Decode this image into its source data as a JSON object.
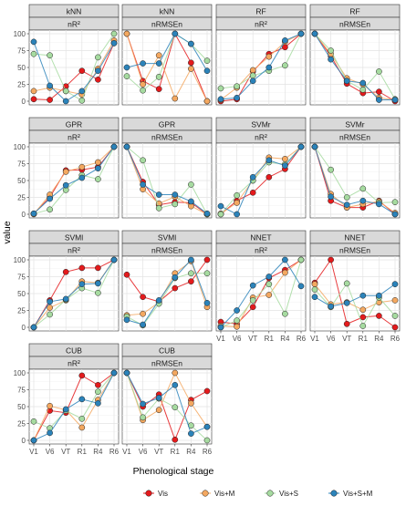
{
  "chart_data": {
    "type": "line",
    "ylabel": "value",
    "xlabel": "Phenological stage",
    "x": [
      "V1",
      "V6",
      "VT",
      "R1",
      "R4",
      "R6"
    ],
    "ylim": [
      0,
      100
    ],
    "yticks": [
      0,
      25,
      50,
      75,
      100
    ],
    "grid": true,
    "legend_position": "bottom",
    "series_names": [
      "Vis",
      "Vis+M",
      "Vis+S",
      "Vis+S+M"
    ],
    "colors": {
      "Vis": "#e41a1c",
      "Vis+M": "#f4a860",
      "Vis+S": "#a6dba0",
      "Vis+S+M": "#2b83ba"
    },
    "panels": [
      {
        "model": "kNN",
        "metric": "nR²",
        "series": {
          "Vis": [
            3,
            2,
            22,
            45,
            32,
            86
          ],
          "Vis+M": [
            15,
            20,
            15,
            10,
            48,
            90
          ],
          "Vis+S": [
            70,
            68,
            15,
            1,
            65,
            100
          ],
          "Vis+S+M": [
            88,
            23,
            0,
            15,
            45,
            86
          ]
        }
      },
      {
        "model": "kNN",
        "metric": "nRMSEn",
        "series": {
          "Vis": [
            100,
            30,
            18,
            100,
            57,
            0
          ],
          "Vis+M": [
            100,
            25,
            68,
            4,
            48,
            0
          ],
          "Vis+S": [
            37,
            16,
            36,
            100,
            85,
            60
          ],
          "Vis+S+M": [
            50,
            56,
            56,
            100,
            85,
            45
          ]
        }
      },
      {
        "model": "RF",
        "metric": "nR²",
        "series": {
          "Vis": [
            0,
            3,
            44,
            70,
            80,
            100
          ],
          "Vis+M": [
            2,
            20,
            46,
            66,
            88,
            100
          ],
          "Vis+S": [
            19,
            22,
            38,
            45,
            53,
            100
          ],
          "Vis+S+M": [
            3,
            5,
            30,
            50,
            90,
            100
          ]
        }
      },
      {
        "model": "RF",
        "metric": "nRMSEn",
        "series": {
          "Vis": [
            100,
            67,
            26,
            12,
            14,
            0
          ],
          "Vis+M": [
            100,
            70,
            34,
            25,
            5,
            2
          ],
          "Vis+S": [
            100,
            75,
            30,
            17,
            44,
            3
          ],
          "Vis+S+M": [
            100,
            62,
            30,
            27,
            2,
            2
          ]
        }
      },
      {
        "model": "GPR",
        "metric": "nR²",
        "series": {
          "Vis": [
            1,
            25,
            65,
            66,
            70,
            100
          ],
          "Vis+M": [
            0,
            29,
            63,
            70,
            77,
            100
          ],
          "Vis+S": [
            1,
            7,
            36,
            58,
            52,
            100
          ],
          "Vis+S+M": [
            1,
            23,
            43,
            54,
            68,
            100
          ]
        }
      },
      {
        "model": "GPR",
        "metric": "nRMSEn",
        "series": {
          "Vis": [
            100,
            48,
            14,
            18,
            17,
            0
          ],
          "Vis+M": [
            100,
            37,
            16,
            26,
            12,
            0
          ],
          "Vis+S": [
            100,
            80,
            9,
            15,
            44,
            0
          ],
          "Vis+S+M": [
            100,
            44,
            29,
            29,
            19,
            1
          ]
        }
      },
      {
        "model": "SVMr",
        "metric": "nR²",
        "series": {
          "Vis": [
            0,
            20,
            32,
            55,
            67,
            100
          ],
          "Vis+M": [
            1,
            17,
            50,
            84,
            82,
            100
          ],
          "Vis+S": [
            0,
            28,
            50,
            77,
            74,
            100
          ],
          "Vis+S+M": [
            12,
            0,
            55,
            80,
            72,
            100
          ]
        }
      },
      {
        "model": "SVMr",
        "metric": "nRMSEn",
        "series": {
          "Vis": [
            100,
            20,
            10,
            10,
            20,
            0
          ],
          "Vis+M": [
            100,
            30,
            10,
            15,
            19,
            2
          ],
          "Vis+S": [
            100,
            66,
            25,
            38,
            17,
            18
          ],
          "Vis+S+M": [
            100,
            26,
            14,
            20,
            15,
            0
          ]
        }
      },
      {
        "model": "SVMl",
        "metric": "nR²",
        "series": {
          "Vis": [
            0,
            40,
            82,
            88,
            88,
            100
          ],
          "Vis+M": [
            0,
            29,
            40,
            68,
            66,
            100
          ],
          "Vis+S": [
            0,
            19,
            41,
            58,
            51,
            100
          ],
          "Vis+S+M": [
            0,
            38,
            42,
            64,
            65,
            100
          ]
        }
      },
      {
        "model": "SVMl",
        "metric": "nRMSEn",
        "series": {
          "Vis": [
            78,
            45,
            38,
            58,
            68,
            100
          ],
          "Vis+M": [
            18,
            20,
            37,
            80,
            98,
            30
          ],
          "Vis+S": [
            16,
            3,
            35,
            73,
            80,
            80
          ],
          "Vis+S+M": [
            11,
            4,
            40,
            74,
            100,
            36
          ]
        }
      },
      {
        "model": "NNET",
        "metric": "nR²",
        "series": {
          "Vis": [
            8,
            5,
            30,
            73,
            85,
            100
          ],
          "Vis+M": [
            2,
            1,
            44,
            48,
            81,
            100
          ],
          "Vis+S": [
            0,
            10,
            40,
            64,
            20,
            100
          ],
          "Vis+S+M": [
            0,
            25,
            62,
            75,
            100,
            61
          ]
        }
      },
      {
        "model": "NNET",
        "metric": "nRMSEn",
        "series": {
          "Vis": [
            66,
            100,
            5,
            15,
            17,
            0
          ],
          "Vis+M": [
            64,
            34,
            37,
            26,
            37,
            40
          ],
          "Vis+S": [
            56,
            30,
            65,
            2,
            44,
            17
          ],
          "Vis+S+M": [
            45,
            31,
            36,
            47,
            47,
            64
          ]
        }
      },
      {
        "model": "CUB",
        "metric": "nR²",
        "series": {
          "Vis": [
            0,
            44,
            41,
            96,
            82,
            100
          ],
          "Vis+M": [
            0,
            51,
            45,
            19,
            60,
            100
          ],
          "Vis+S": [
            28,
            18,
            44,
            32,
            72,
            100
          ],
          "Vis+S+M": [
            0,
            11,
            46,
            61,
            55,
            100
          ]
        }
      },
      {
        "model": "CUB",
        "metric": "nRMSEn",
        "series": {
          "Vis": [
            100,
            50,
            68,
            1,
            60,
            73
          ],
          "Vis+M": [
            100,
            30,
            45,
            100,
            55,
            20
          ],
          "Vis+S": [
            100,
            34,
            62,
            49,
            22,
            0
          ],
          "Vis+S+M": [
            100,
            54,
            63,
            82,
            10,
            20
          ]
        }
      }
    ]
  }
}
